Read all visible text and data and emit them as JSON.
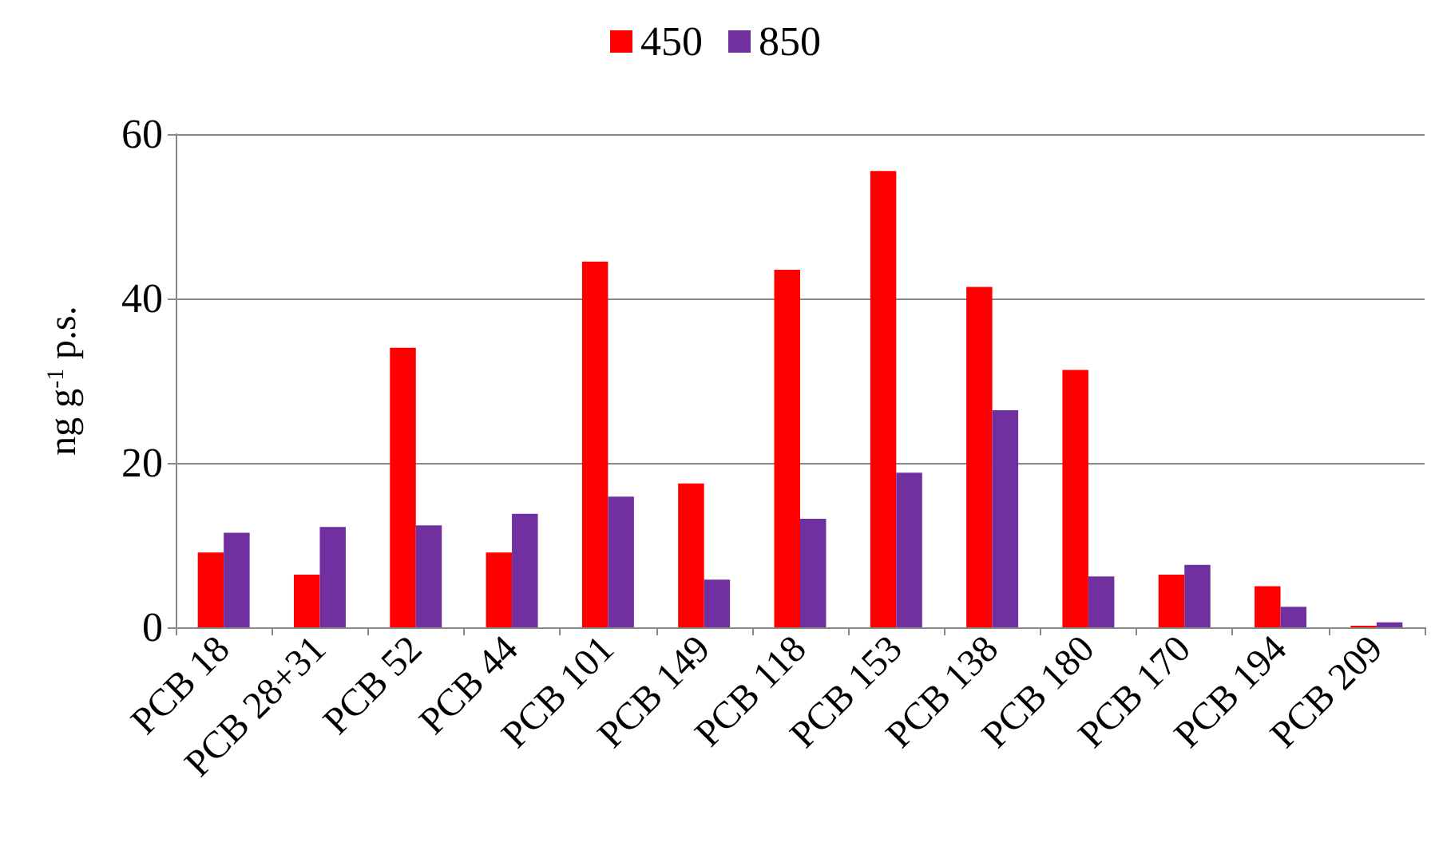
{
  "chart_data": {
    "type": "bar",
    "ylabel": "ng g$^{-1}$ p.s.",
    "categories": [
      "PCB 18",
      "PCB 28+31",
      "PCB 52",
      "PCB 44",
      "PCB 101",
      "PCB 149",
      "PCB 118",
      "PCB 153",
      "PCB 138",
      "PCB 180",
      "PCB 170",
      "PCB 194",
      "PCB 209"
    ],
    "series": [
      {
        "name": "450",
        "color": "#ff0000",
        "values": [
          9.1,
          6.4,
          34.0,
          9.1,
          44.5,
          17.5,
          43.5,
          55.5,
          41.4,
          31.3,
          6.4,
          5.0,
          0.2
        ]
      },
      {
        "name": "850",
        "color": "#7030a0",
        "values": [
          11.5,
          12.2,
          12.4,
          13.8,
          15.9,
          5.8,
          13.2,
          18.8,
          26.4,
          6.2,
          7.6,
          2.5,
          0.6
        ]
      }
    ],
    "ylim": [
      0,
      60
    ],
    "yticks": [
      0,
      20,
      40,
      60
    ],
    "grid": "y",
    "legend": "top"
  }
}
